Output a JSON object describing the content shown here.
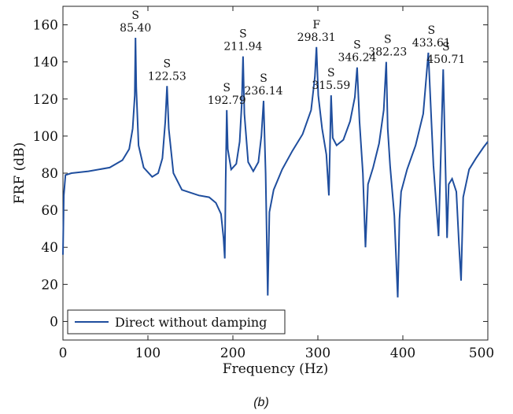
{
  "chart_data": {
    "type": "line",
    "xlabel": "Frequency (Hz)",
    "ylabel": "FRF (dB)",
    "caption": "(b)",
    "xlim": [
      0,
      500
    ],
    "ylim": [
      -10,
      170
    ],
    "x_ticks": [
      "0",
      "100",
      "200",
      "300",
      "400",
      "500"
    ],
    "y_ticks": [
      "0",
      "20",
      "40",
      "60",
      "80",
      "100",
      "120",
      "140",
      "160"
    ],
    "grid": false,
    "legend_position": "bottom-left",
    "series": [
      {
        "name": "Direct without damping",
        "color": "#1f4e9e",
        "x": [
          0,
          1,
          3,
          10,
          30,
          55,
          70,
          78,
          82,
          84.5,
          85.4,
          86.3,
          89,
          95,
          105,
          112,
          117,
          120.5,
          122.53,
          124.5,
          130,
          140,
          160,
          172,
          180,
          186,
          189,
          190.5,
          191.5,
          192.79,
          194,
          198,
          204,
          208,
          210.5,
          211.94,
          213.5,
          218,
          224,
          230,
          233.5,
          236.14,
          238.5,
          241,
          243,
          248,
          258,
          270,
          282,
          292,
          296.5,
          298.31,
          300.5,
          305,
          310,
          313,
          315.59,
          317.5,
          322,
          330,
          338,
          343.5,
          346.24,
          349,
          353,
          356,
          359,
          365,
          372,
          377.5,
          380.5,
          382.23,
          385,
          390,
          394,
          396,
          398,
          405,
          415,
          424,
          430,
          433.61,
          436,
          442,
          447.5,
          450.71,
          452,
          454,
          458,
          463,
          466,
          468.5,
          471,
          478,
          486,
          495,
          500
        ],
        "y": [
          36,
          68,
          79,
          80,
          81,
          83,
          87,
          93,
          104,
          122,
          153,
          126,
          95,
          83,
          78,
          80,
          88,
          108,
          127,
          104,
          80,
          71,
          68,
          67,
          64,
          58,
          45,
          34,
          75,
          114,
          93,
          82,
          85,
          97,
          118,
          143,
          112,
          86,
          81,
          86,
          100,
          119,
          80,
          14,
          59,
          71,
          82,
          92,
          101,
          114,
          132,
          148,
          122,
          104,
          90,
          68,
          122,
          99,
          95,
          98,
          108,
          121,
          137,
          108,
          80,
          40,
          74,
          83,
          96,
          114,
          140,
          104,
          84,
          57,
          13,
          55,
          70,
          82,
          95,
          112,
          145,
          108,
          84,
          46,
          136,
          72,
          45,
          74,
          77,
          70,
          42,
          22,
          67,
          82,
          88,
          94,
          97
        ]
      }
    ],
    "annotations": [
      {
        "label": "S",
        "value": "85.40",
        "x": 85.4,
        "y": 153
      },
      {
        "label": "S",
        "value": "122.53",
        "x": 122.53,
        "y": 127
      },
      {
        "label": "S",
        "value": "192.79",
        "x": 192.79,
        "y": 114
      },
      {
        "label": "S",
        "value": "211.94",
        "x": 211.94,
        "y": 143
      },
      {
        "label": "S",
        "value": "236.14",
        "x": 236.14,
        "y": 119
      },
      {
        "label": "F",
        "value": "298.31",
        "x": 298.31,
        "y": 148
      },
      {
        "label": "S",
        "value": "315.59",
        "x": 315.59,
        "y": 122
      },
      {
        "label": "S",
        "value": "346.24",
        "x": 346.24,
        "y": 137
      },
      {
        "label": "S",
        "value": "382.23",
        "x": 382.23,
        "y": 140
      },
      {
        "label": "S",
        "value": "433.61",
        "x": 433.61,
        "y": 145
      },
      {
        "label": "S",
        "value": "450.71",
        "x": 450.71,
        "y": 136
      }
    ]
  }
}
